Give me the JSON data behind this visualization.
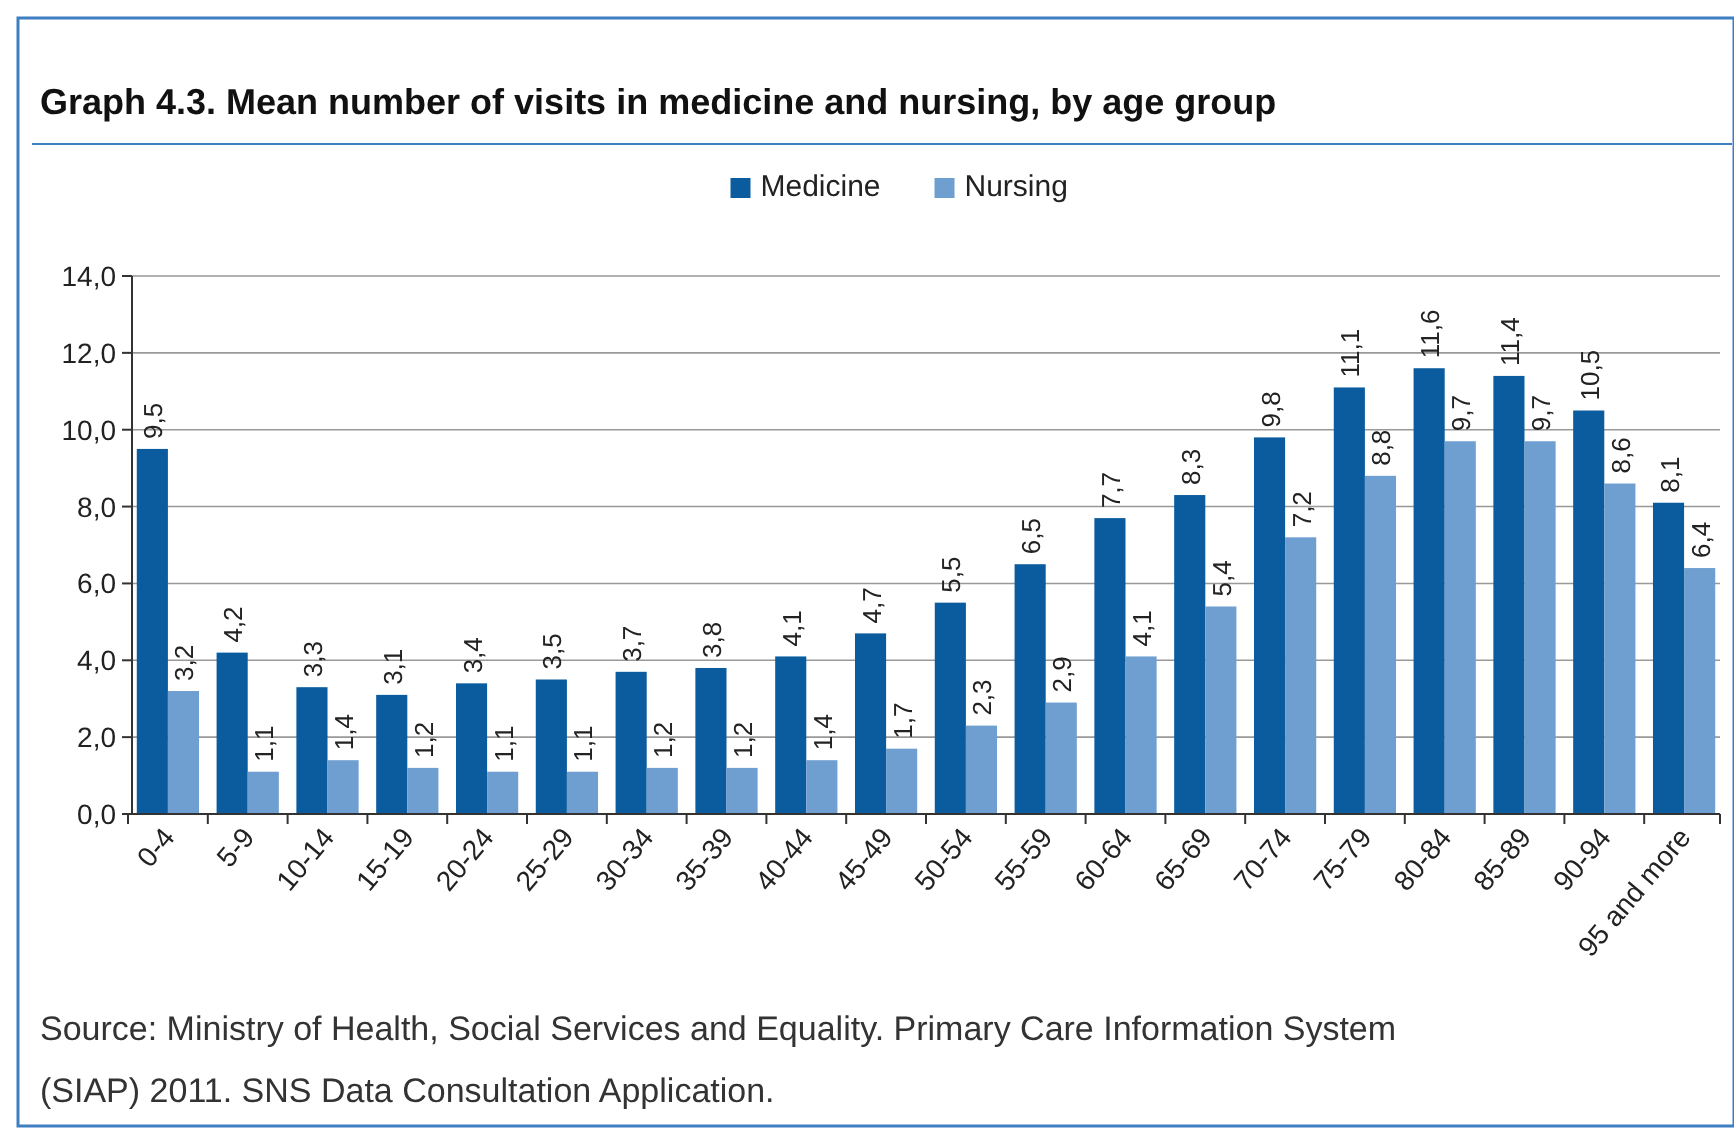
{
  "chart_data": {
    "type": "bar",
    "title": "Graph 4.3.  Mean number of visits in medicine and nursing, by age group",
    "categories": [
      "0-4",
      "5-9",
      "10-14",
      "15-19",
      "20-24",
      "25-29",
      "30-34",
      "35-39",
      "40-44",
      "45-49",
      "50-54",
      "55-59",
      "60-64",
      "65-69",
      "70-74",
      "75-79",
      "80-84",
      "85-89",
      "90-94",
      "95 and more"
    ],
    "series": [
      {
        "name": "Medicine",
        "color": "#0b5c9e",
        "values": [
          9.5,
          4.2,
          3.3,
          3.1,
          3.4,
          3.5,
          3.7,
          3.8,
          4.1,
          4.7,
          5.5,
          6.5,
          7.7,
          8.3,
          9.8,
          11.1,
          11.6,
          11.4,
          10.5,
          8.1
        ],
        "value_labels": [
          "9,5",
          "4,2",
          "3,3",
          "3,1",
          "3,4",
          "3,5",
          "3,7",
          "3,8",
          "4,1",
          "4,7",
          "5,5",
          "6,5",
          "7,7",
          "8,3",
          "9,8",
          "11,1",
          "11,6",
          "11,4",
          "10,5",
          "8,1"
        ]
      },
      {
        "name": "Nursing",
        "color": "#6f9fd0",
        "values": [
          3.2,
          1.1,
          1.4,
          1.2,
          1.1,
          1.1,
          1.2,
          1.2,
          1.4,
          1.7,
          2.3,
          2.9,
          4.1,
          5.4,
          7.2,
          8.8,
          9.7,
          9.7,
          8.6,
          6.4
        ],
        "value_labels": [
          "3,2",
          "1,1",
          "1,4",
          "1,2",
          "1,1",
          "1,1",
          "1,2",
          "1,2",
          "1,4",
          "1,7",
          "2,3",
          "2,9",
          "4,1",
          "5,4",
          "7,2",
          "8,8",
          "9,7",
          "9,7",
          "8,6",
          "6,4"
        ]
      }
    ],
    "ylim": [
      0,
      14
    ],
    "yticks": [
      {
        "value": 0,
        "label": "0,0"
      },
      {
        "value": 2,
        "label": "2,0"
      },
      {
        "value": 4,
        "label": "4,0"
      },
      {
        "value": 6,
        "label": "6,0"
      },
      {
        "value": 8,
        "label": "8,0"
      },
      {
        "value": 10,
        "label": "10,0"
      },
      {
        "value": 12,
        "label": "12,0"
      },
      {
        "value": 14,
        "label": "14,0"
      }
    ],
    "grid": "y",
    "legend": "top",
    "annotations": [
      "Source: Ministry of Health, Social Services and Equality. Primary Care Information System (SIAP) 2011. SNS Data Consultation Application."
    ]
  }
}
